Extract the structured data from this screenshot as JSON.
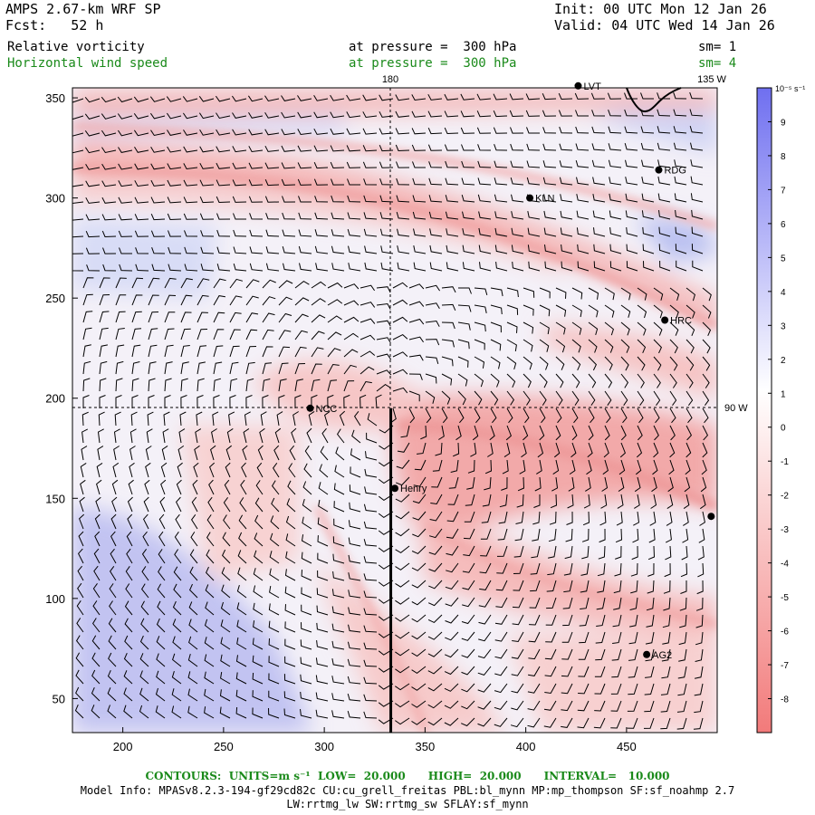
{
  "header": {
    "model": "AMPS 2.67-km WRF SP",
    "init": "Init: 00 UTC Mon 12 Jan 26",
    "fcst": "Fcst:   52 h",
    "valid": "Valid: 04 UTC Wed 14 Jan 26"
  },
  "fields": [
    {
      "name": "Relative vorticity",
      "level": "at pressure =  300 hPa",
      "smooth": "sm= 1",
      "color": "#000000"
    },
    {
      "name": "Horizontal wind speed",
      "level": "at pressure =  300 hPa",
      "smooth": "sm= 4",
      "color": "#1a8a1a"
    }
  ],
  "map": {
    "x_ticks": [
      200,
      250,
      300,
      350,
      400,
      450
    ],
    "y_ticks": [
      50,
      100,
      150,
      200,
      250,
      300,
      350
    ],
    "x_range": [
      175,
      495
    ],
    "y_range": [
      33,
      355
    ],
    "grid_labels": {
      "lon180": "180",
      "lon135w": "135 W",
      "lat90w": "90 W"
    },
    "stations": [
      {
        "name": "LVT",
        "x": 426,
        "y": 356
      },
      {
        "name": "RDG",
        "x": 466,
        "y": 314
      },
      {
        "name": "KLN",
        "x": 402,
        "y": 300
      },
      {
        "name": "HRC",
        "x": 469,
        "y": 239
      },
      {
        "name": "NCC",
        "x": 293,
        "y": 195
      },
      {
        "name": "Henry",
        "x": 335,
        "y": 155
      },
      {
        "name": "",
        "x": 492,
        "y": 141
      },
      {
        "name": "AG2",
        "x": 460,
        "y": 72
      }
    ],
    "cross_section": {
      "x": 333,
      "y_from": 33,
      "y_to": 195
    },
    "colors": {
      "positive": "#6f6ff0",
      "negative": "#f27a7a",
      "zero": "#ffffff",
      "line": "#000000"
    }
  },
  "colorbar": {
    "units_label": "10⁻⁵ s⁻¹",
    "levels": [
      9,
      8,
      7,
      6,
      5,
      4,
      3,
      2,
      1,
      0,
      -1,
      -2,
      -3,
      -4,
      -5,
      -6,
      -7,
      -8
    ],
    "range": [
      -9,
      10
    ]
  },
  "footer": {
    "contours": "CONTOURS:  UNITS=m s⁻¹  LOW=  20.000      HIGH=  20.000      INTERVAL=   10.000",
    "model_info": "Model Info: MPASv8.2.3-194-gf29cd82c CU:cu_grell_freitas PBL:bl_mynn MP:mp_thompson SF:sf_noahmp 2.7",
    "model_info2": "LW:rrtmg_lw SW:rrtmg_sw SFLAY:sf_mynn"
  }
}
